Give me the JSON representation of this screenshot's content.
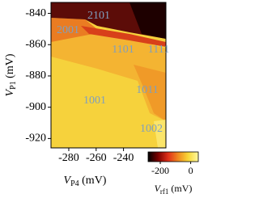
{
  "chart_data": {
    "type": "heatmap",
    "xlabel": {
      "symbol": "V",
      "subscript": "P4",
      "unit": "(mV)"
    },
    "ylabel": {
      "symbol": "V",
      "subscript": "P1",
      "unit": "(mV)"
    },
    "xlim": [
      -293,
      -209
    ],
    "xticks": [
      -280,
      -260,
      -240
    ],
    "ylim": [
      -926,
      -833
    ],
    "yticks": [
      -840,
      -860,
      -880,
      -900,
      -920
    ],
    "annotations": [
      "2101",
      "2001",
      "1101",
      "1111",
      "1011",
      "1001",
      "1002"
    ],
    "annotation_color": "#7f9fbf",
    "colorbar": {
      "label": {
        "symbol": "V",
        "subscript": "rf1",
        "unit": "(mV)"
      },
      "lim": [
        -280,
        50
      ],
      "ticks": [
        -200,
        0
      ],
      "colors": [
        "#000000",
        "#7a0000",
        "#e0301a",
        "#f08a20",
        "#f8d838",
        "#fff8a0"
      ]
    }
  }
}
